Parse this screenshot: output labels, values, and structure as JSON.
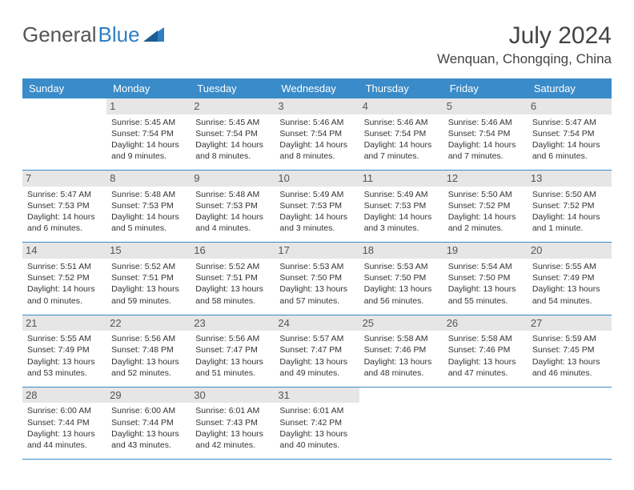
{
  "brand": {
    "part1": "General",
    "part2": "Blue"
  },
  "title": "July 2024",
  "location": "Wenquan, Chongqing, China",
  "colors": {
    "header_bg": "#3a8bc9",
    "header_text": "#ffffff",
    "daynum_bg": "#e6e6e6",
    "rule": "#3a8bc9",
    "brand_blue": "#2f7ec2",
    "text": "#333333"
  },
  "weekdays": [
    "Sunday",
    "Monday",
    "Tuesday",
    "Wednesday",
    "Thursday",
    "Friday",
    "Saturday"
  ],
  "weeks": [
    [
      null,
      {
        "n": "1",
        "sr": "5:45 AM",
        "ss": "7:54 PM",
        "dl": "14 hours and 9 minutes."
      },
      {
        "n": "2",
        "sr": "5:45 AM",
        "ss": "7:54 PM",
        "dl": "14 hours and 8 minutes."
      },
      {
        "n": "3",
        "sr": "5:46 AM",
        "ss": "7:54 PM",
        "dl": "14 hours and 8 minutes."
      },
      {
        "n": "4",
        "sr": "5:46 AM",
        "ss": "7:54 PM",
        "dl": "14 hours and 7 minutes."
      },
      {
        "n": "5",
        "sr": "5:46 AM",
        "ss": "7:54 PM",
        "dl": "14 hours and 7 minutes."
      },
      {
        "n": "6",
        "sr": "5:47 AM",
        "ss": "7:54 PM",
        "dl": "14 hours and 6 minutes."
      }
    ],
    [
      {
        "n": "7",
        "sr": "5:47 AM",
        "ss": "7:53 PM",
        "dl": "14 hours and 6 minutes."
      },
      {
        "n": "8",
        "sr": "5:48 AM",
        "ss": "7:53 PM",
        "dl": "14 hours and 5 minutes."
      },
      {
        "n": "9",
        "sr": "5:48 AM",
        "ss": "7:53 PM",
        "dl": "14 hours and 4 minutes."
      },
      {
        "n": "10",
        "sr": "5:49 AM",
        "ss": "7:53 PM",
        "dl": "14 hours and 3 minutes."
      },
      {
        "n": "11",
        "sr": "5:49 AM",
        "ss": "7:53 PM",
        "dl": "14 hours and 3 minutes."
      },
      {
        "n": "12",
        "sr": "5:50 AM",
        "ss": "7:52 PM",
        "dl": "14 hours and 2 minutes."
      },
      {
        "n": "13",
        "sr": "5:50 AM",
        "ss": "7:52 PM",
        "dl": "14 hours and 1 minute."
      }
    ],
    [
      {
        "n": "14",
        "sr": "5:51 AM",
        "ss": "7:52 PM",
        "dl": "14 hours and 0 minutes."
      },
      {
        "n": "15",
        "sr": "5:52 AM",
        "ss": "7:51 PM",
        "dl": "13 hours and 59 minutes."
      },
      {
        "n": "16",
        "sr": "5:52 AM",
        "ss": "7:51 PM",
        "dl": "13 hours and 58 minutes."
      },
      {
        "n": "17",
        "sr": "5:53 AM",
        "ss": "7:50 PM",
        "dl": "13 hours and 57 minutes."
      },
      {
        "n": "18",
        "sr": "5:53 AM",
        "ss": "7:50 PM",
        "dl": "13 hours and 56 minutes."
      },
      {
        "n": "19",
        "sr": "5:54 AM",
        "ss": "7:50 PM",
        "dl": "13 hours and 55 minutes."
      },
      {
        "n": "20",
        "sr": "5:55 AM",
        "ss": "7:49 PM",
        "dl": "13 hours and 54 minutes."
      }
    ],
    [
      {
        "n": "21",
        "sr": "5:55 AM",
        "ss": "7:49 PM",
        "dl": "13 hours and 53 minutes."
      },
      {
        "n": "22",
        "sr": "5:56 AM",
        "ss": "7:48 PM",
        "dl": "13 hours and 52 minutes."
      },
      {
        "n": "23",
        "sr": "5:56 AM",
        "ss": "7:47 PM",
        "dl": "13 hours and 51 minutes."
      },
      {
        "n": "24",
        "sr": "5:57 AM",
        "ss": "7:47 PM",
        "dl": "13 hours and 49 minutes."
      },
      {
        "n": "25",
        "sr": "5:58 AM",
        "ss": "7:46 PM",
        "dl": "13 hours and 48 minutes."
      },
      {
        "n": "26",
        "sr": "5:58 AM",
        "ss": "7:46 PM",
        "dl": "13 hours and 47 minutes."
      },
      {
        "n": "27",
        "sr": "5:59 AM",
        "ss": "7:45 PM",
        "dl": "13 hours and 46 minutes."
      }
    ],
    [
      {
        "n": "28",
        "sr": "6:00 AM",
        "ss": "7:44 PM",
        "dl": "13 hours and 44 minutes."
      },
      {
        "n": "29",
        "sr": "6:00 AM",
        "ss": "7:44 PM",
        "dl": "13 hours and 43 minutes."
      },
      {
        "n": "30",
        "sr": "6:01 AM",
        "ss": "7:43 PM",
        "dl": "13 hours and 42 minutes."
      },
      {
        "n": "31",
        "sr": "6:01 AM",
        "ss": "7:42 PM",
        "dl": "13 hours and 40 minutes."
      },
      null,
      null,
      null
    ]
  ],
  "labels": {
    "sunrise": "Sunrise:",
    "sunset": "Sunset:",
    "daylight": "Daylight:"
  }
}
